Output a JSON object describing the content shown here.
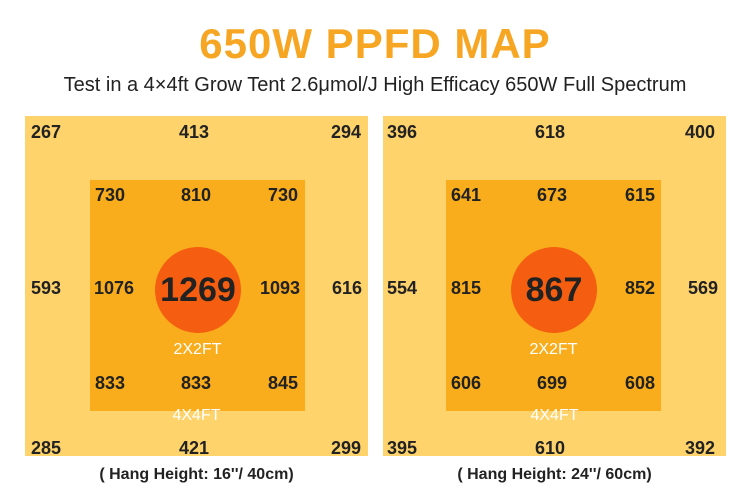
{
  "title": "650W PPFD MAP",
  "subtitle": "Test in a 4×4ft Grow Tent 2.6μmol/J High Efficacy 650W Full Spectrum",
  "colors": {
    "title": "#F6A623",
    "outer_zone": "#FFD36B",
    "inner_zone": "#F9AD1C",
    "center_circle": "#F55E10"
  },
  "maps": [
    {
      "outer": {
        "top_left": "267",
        "top_center": "413",
        "top_right": "294",
        "mid_left": "593",
        "mid_right": "616",
        "bottom_left": "285",
        "bottom_center": "421",
        "bottom_right": "299"
      },
      "inner": {
        "top_left": "730",
        "top_center": "810",
        "top_right": "730",
        "mid_left": "1076",
        "mid_right": "1093",
        "bottom_left": "833",
        "bottom_center": "833",
        "bottom_right": "845"
      },
      "center": "1269",
      "inner_label": "2X2FT",
      "outer_label": "4X4FT",
      "caption": "( Hang Height: 16''/ 40cm)"
    },
    {
      "outer": {
        "top_left": "396",
        "top_center": "618",
        "top_right": "400",
        "mid_left": "554",
        "mid_right": "569",
        "bottom_left": "395",
        "bottom_center": "610",
        "bottom_right": "392"
      },
      "inner": {
        "top_left": "641",
        "top_center": "673",
        "top_right": "615",
        "mid_left": "815",
        "mid_right": "852",
        "bottom_left": "606",
        "bottom_center": "699",
        "bottom_right": "608"
      },
      "center": "867",
      "inner_label": "2X2FT",
      "outer_label": "4X4FT",
      "caption": "( Hang Height: 24''/ 60cm)"
    }
  ]
}
